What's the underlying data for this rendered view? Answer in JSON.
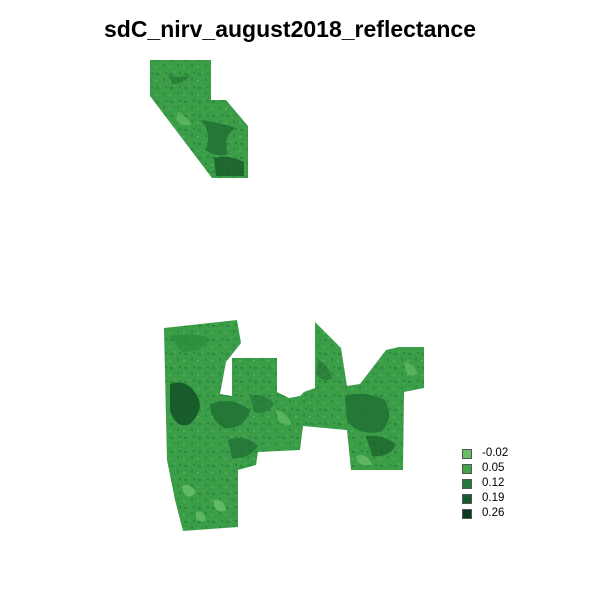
{
  "title": "sdC_nirv_august2018_reflectance",
  "legend": {
    "items": [
      {
        "label": "-0.02",
        "color": "#66bd63"
      },
      {
        "label": "0.05",
        "color": "#41a34b"
      },
      {
        "label": "0.12",
        "color": "#23783a"
      },
      {
        "label": "0.19",
        "color": "#145a2a"
      },
      {
        "label": "0.26",
        "color": "#0a3a19"
      }
    ]
  },
  "map": {
    "base_color": "#3c9d48",
    "dark_color": "#1f6e33",
    "darker_color": "#135127",
    "light_color": "#6cc06a"
  }
}
